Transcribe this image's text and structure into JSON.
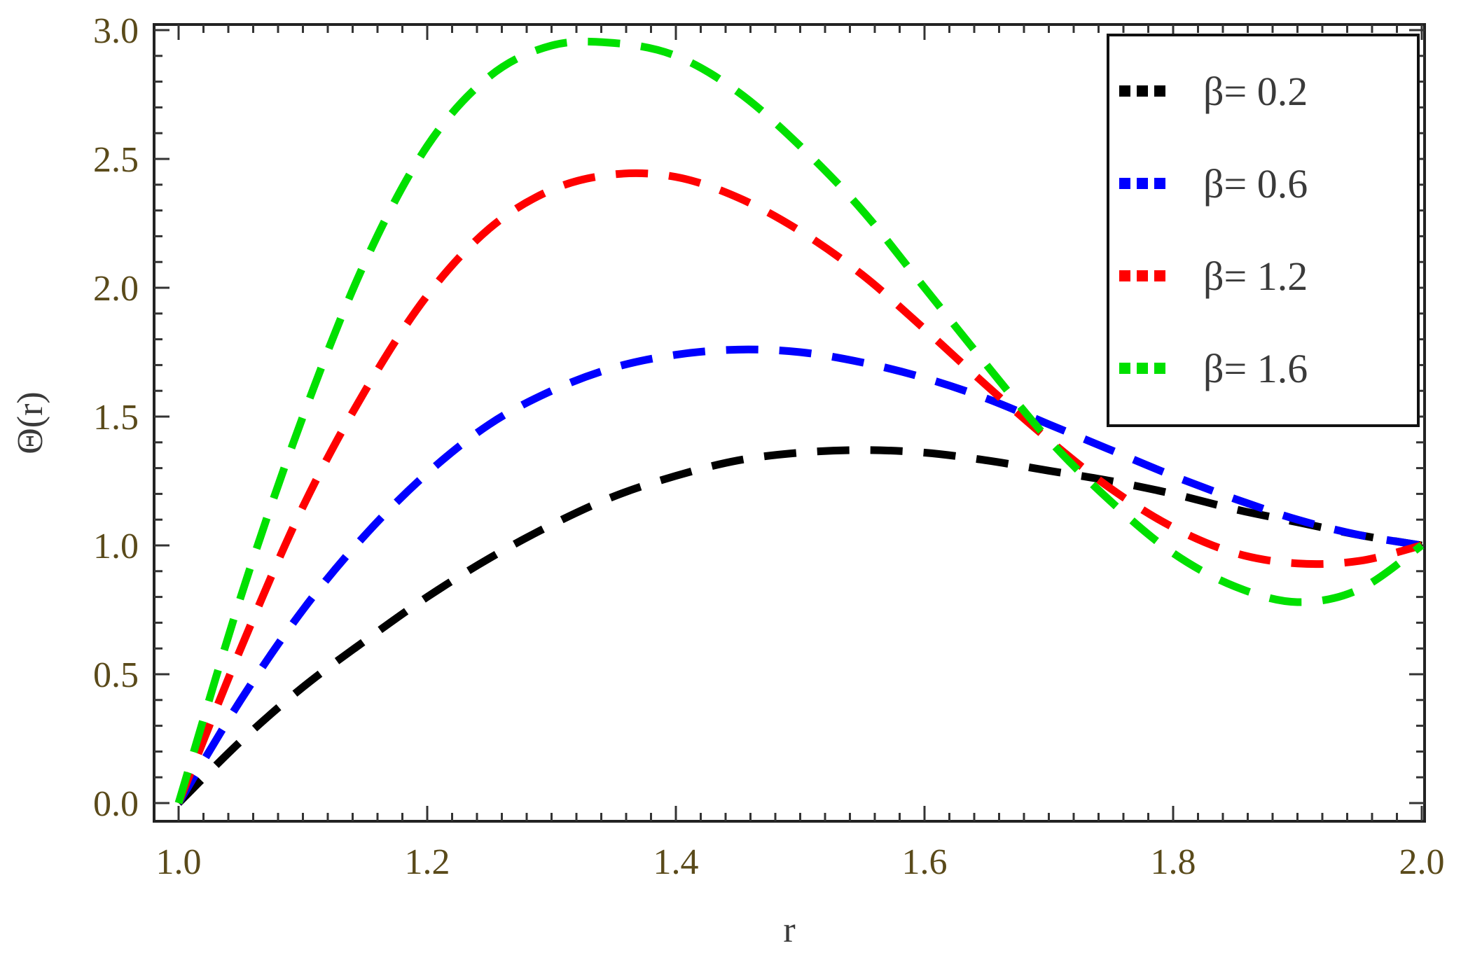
{
  "chart_data": {
    "type": "line",
    "xlabel": "r",
    "ylabel": "Θ(r)",
    "xlim": [
      1.0,
      2.0
    ],
    "ylim": [
      -0.07,
      3.0
    ],
    "x_ticks": [
      "1.0",
      "1.2",
      "1.4",
      "1.6",
      "1.8",
      "2.0"
    ],
    "y_ticks": [
      "0.0",
      "0.5",
      "1.0",
      "1.5",
      "2.0",
      "2.5",
      "3.0"
    ],
    "x_tick_values": [
      1.0,
      1.2,
      1.4,
      1.6,
      1.8,
      2.0
    ],
    "y_tick_values": [
      0.0,
      0.5,
      1.0,
      1.5,
      2.0,
      2.5,
      3.0
    ],
    "grid": false,
    "legend_position": "top-right",
    "line_style": "dashed",
    "series": [
      {
        "name": "β= 0.2",
        "color": "#000000",
        "x": [
          1.0,
          1.05,
          1.1,
          1.15,
          1.2,
          1.25,
          1.3,
          1.35,
          1.4,
          1.45,
          1.5,
          1.55,
          1.6,
          1.65,
          1.7,
          1.75,
          1.8,
          1.85,
          1.9,
          1.95,
          2.0
        ],
        "y": [
          0.0,
          0.24,
          0.45,
          0.63,
          0.8,
          0.95,
          1.08,
          1.19,
          1.27,
          1.33,
          1.36,
          1.37,
          1.36,
          1.33,
          1.29,
          1.25,
          1.2,
          1.14,
          1.09,
          1.04,
          1.0
        ]
      },
      {
        "name": "β= 0.6",
        "color": "#0000ff",
        "x": [
          1.0,
          1.05,
          1.1,
          1.15,
          1.2,
          1.25,
          1.3,
          1.35,
          1.4,
          1.45,
          1.5,
          1.55,
          1.6,
          1.65,
          1.7,
          1.75,
          1.8,
          1.85,
          1.9,
          1.95,
          2.0
        ],
        "y": [
          0.0,
          0.4,
          0.75,
          1.04,
          1.28,
          1.47,
          1.6,
          1.69,
          1.74,
          1.76,
          1.75,
          1.71,
          1.65,
          1.57,
          1.47,
          1.37,
          1.27,
          1.18,
          1.1,
          1.04,
          1.0
        ]
      },
      {
        "name": "β= 1.2",
        "color": "#ff0000",
        "x": [
          1.0,
          1.05,
          1.1,
          1.15,
          1.2,
          1.25,
          1.3,
          1.35,
          1.4,
          1.45,
          1.5,
          1.55,
          1.6,
          1.65,
          1.7,
          1.75,
          1.8,
          1.85,
          1.9,
          1.95,
          2.0
        ],
        "y": [
          0.0,
          0.6,
          1.15,
          1.6,
          1.97,
          2.23,
          2.38,
          2.44,
          2.43,
          2.35,
          2.22,
          2.05,
          1.84,
          1.62,
          1.41,
          1.22,
          1.07,
          0.97,
          0.93,
          0.94,
          1.0
        ]
      },
      {
        "name": "β= 1.6",
        "color": "#00e000",
        "x": [
          1.0,
          1.05,
          1.1,
          1.15,
          1.2,
          1.25,
          1.3,
          1.35,
          1.4,
          1.45,
          1.5,
          1.55,
          1.6,
          1.65,
          1.7,
          1.75,
          1.8,
          1.85,
          1.9,
          1.95,
          2.0
        ],
        "y": [
          0.0,
          0.8,
          1.5,
          2.1,
          2.55,
          2.82,
          2.94,
          2.95,
          2.9,
          2.76,
          2.55,
          2.3,
          2.0,
          1.7,
          1.41,
          1.17,
          0.97,
          0.84,
          0.78,
          0.83,
          1.0
        ]
      }
    ]
  }
}
